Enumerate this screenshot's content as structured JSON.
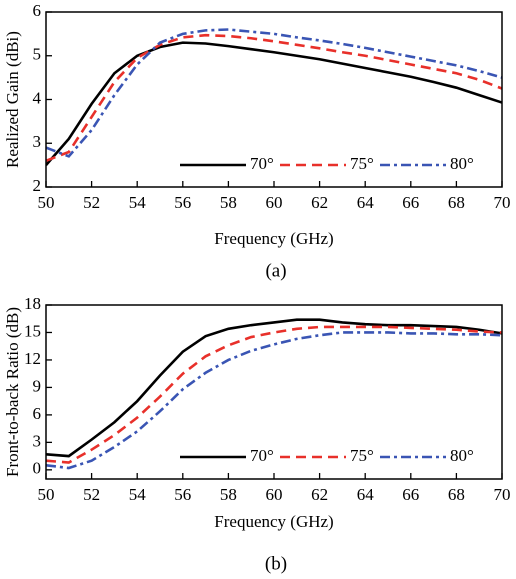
{
  "chart_data": [
    {
      "type": "line",
      "ylabel": "Realized Gain (dBi)",
      "xlabel": "Frequency (GHz)",
      "caption": "(a)",
      "x": [
        50,
        51,
        52,
        53,
        54,
        55,
        56,
        57,
        58,
        59,
        60,
        61,
        62,
        63,
        64,
        65,
        66,
        67,
        68,
        69,
        70
      ],
      "xlim": [
        50,
        70
      ],
      "xticks": [
        50,
        52,
        54,
        56,
        58,
        60,
        62,
        64,
        66,
        68,
        70
      ],
      "ylim": [
        2,
        6
      ],
      "yticks": [
        2,
        3,
        4,
        5,
        6
      ],
      "legend": "bottom-right",
      "series": [
        {
          "name": "70°",
          "color": "#000000",
          "style": "solid",
          "values": [
            2.5,
            3.1,
            3.9,
            4.6,
            5.0,
            5.2,
            5.3,
            5.28,
            5.22,
            5.15,
            5.08,
            5.0,
            4.92,
            4.82,
            4.72,
            4.62,
            4.52,
            4.4,
            4.27,
            4.1,
            3.93
          ]
        },
        {
          "name": "75°",
          "color": "#e8302a",
          "style": "dashed",
          "values": [
            2.6,
            2.8,
            3.6,
            4.4,
            4.95,
            5.25,
            5.42,
            5.47,
            5.45,
            5.4,
            5.33,
            5.25,
            5.17,
            5.08,
            5.0,
            4.9,
            4.8,
            4.7,
            4.6,
            4.45,
            4.25
          ]
        },
        {
          "name": "80°",
          "color": "#3a55b4",
          "style": "dashdot",
          "values": [
            2.9,
            2.7,
            3.3,
            4.1,
            4.8,
            5.3,
            5.5,
            5.58,
            5.6,
            5.55,
            5.5,
            5.42,
            5.35,
            5.27,
            5.18,
            5.08,
            4.98,
            4.88,
            4.78,
            4.65,
            4.5
          ]
        }
      ]
    },
    {
      "type": "line",
      "ylabel": "Front-to-back Ratio (dB)",
      "xlabel": "Frequency (GHz)",
      "caption": "(b)",
      "x": [
        50,
        51,
        52,
        53,
        54,
        55,
        56,
        57,
        58,
        59,
        60,
        61,
        62,
        63,
        64,
        65,
        66,
        67,
        68,
        69,
        70
      ],
      "xlim": [
        50,
        70
      ],
      "xticks": [
        50,
        52,
        54,
        56,
        58,
        60,
        62,
        64,
        66,
        68,
        70
      ],
      "ylim": [
        -1,
        18
      ],
      "yticks": [
        0,
        3,
        6,
        9,
        12,
        15,
        18
      ],
      "legend": "bottom-right",
      "series": [
        {
          "name": "70°",
          "color": "#000000",
          "style": "solid",
          "values": [
            1.7,
            1.5,
            3.3,
            5.2,
            7.5,
            10.3,
            12.9,
            14.6,
            15.4,
            15.8,
            16.1,
            16.4,
            16.4,
            16.1,
            15.9,
            15.8,
            15.8,
            15.7,
            15.6,
            15.3,
            14.9
          ]
        },
        {
          "name": "75°",
          "color": "#e8302a",
          "style": "dashed",
          "values": [
            1.0,
            0.8,
            2.2,
            3.8,
            5.7,
            8.0,
            10.5,
            12.4,
            13.6,
            14.5,
            15.0,
            15.4,
            15.6,
            15.6,
            15.6,
            15.6,
            15.5,
            15.4,
            15.3,
            15.1,
            15.0
          ]
        },
        {
          "name": "80°",
          "color": "#3a55b4",
          "style": "dashdot",
          "values": [
            0.5,
            0.2,
            1.0,
            2.5,
            4.2,
            6.4,
            8.8,
            10.6,
            12.0,
            13.0,
            13.7,
            14.3,
            14.7,
            15.0,
            15.0,
            15.0,
            14.9,
            14.9,
            14.8,
            14.8,
            14.7
          ]
        }
      ]
    }
  ]
}
